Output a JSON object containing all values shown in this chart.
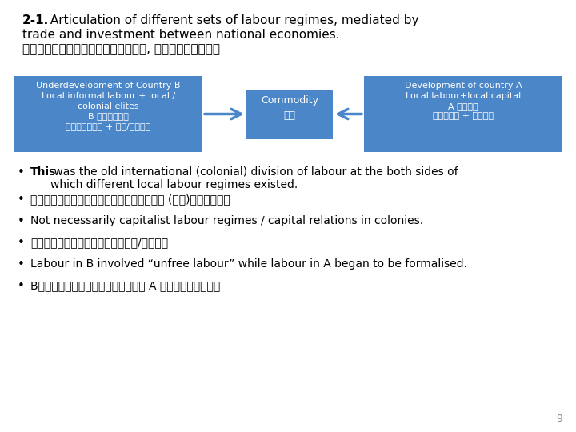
{
  "title_bold": "2-1.",
  "title_line1_rest": " Articulation of different sets of labour regimes, mediated by",
  "title_line2": "trade and investment between national economies.",
  "title_chinese": "在國家經濟之間的貸易和投資的調解中, 連接不同的勞動制度",
  "box_color": "#4A86C8",
  "box_left_text": "Underdevelopment of Country B\nLocal informal labour + local /\ncolonial elites\nB 國的落後發展\n當地非正規勞工 + 當地/殖民精英",
  "box_center_text": "Commodity\n商品",
  "box_right_text": "Development of country A\nLocal labour+local capital\nA 國的發展\n當地勞動力 + 當地資本",
  "bullet1_bold": "This",
  "bullet1_rest": " was the old international (colonial) division of labour at the both sides of",
  "bullet1_line2": "which different local labour regimes existed.",
  "bullet2": "這是兩種不同地方的勞工制度，在舊有的國際 (殖民)體系中的分工",
  "bullet3": "Not necessarily capitalist labour regimes / capital relations in colonies.",
  "bullet4": "不一定是殖民地的資本主義勞工制度/資本關係",
  "bullet5": "Labour in B involved “unfree labour” while labour in A began to be formalised.",
  "bullet6": "B國中的勞動涉及「不自由勞動」，而 A 的勞動則步入正規化",
  "page_number": "9",
  "bg_color": "#FFFFFF",
  "text_color": "#000000",
  "box_text_color": "#FFFFFF"
}
